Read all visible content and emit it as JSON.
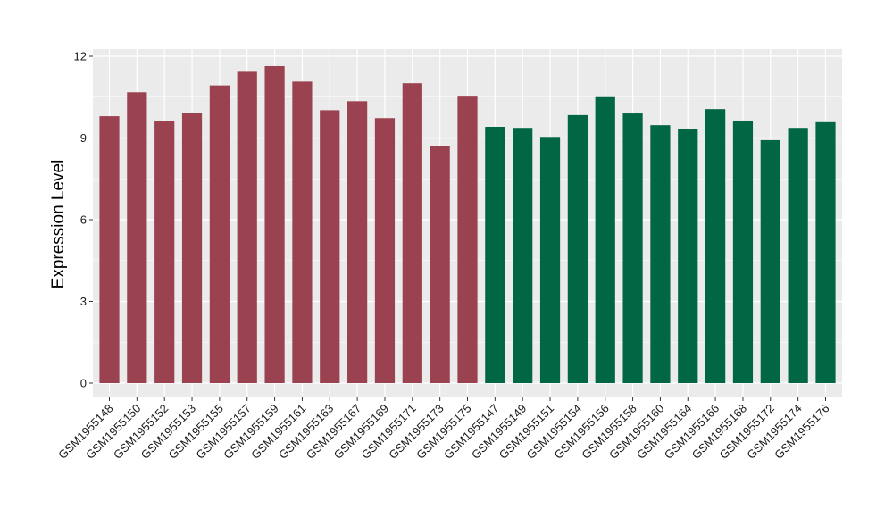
{
  "chart_data": {
    "type": "bar",
    "title": "",
    "xlabel": "",
    "ylabel": "Expression Level",
    "ylim": [
      0,
      12
    ],
    "yticks": [
      0,
      3,
      6,
      9,
      12
    ],
    "grid": true,
    "legend": "none",
    "colors": {
      "group_a": "#9b4250",
      "group_b": "#006644",
      "panel_bg": "#ebebeb",
      "grid": "#ffffff"
    },
    "categories": [
      "GSM1955148",
      "GSM1955150",
      "GSM1955152",
      "GSM1955153",
      "GSM1955155",
      "GSM1955157",
      "GSM1955159",
      "GSM1955161",
      "GSM1955163",
      "GSM1955167",
      "GSM1955169",
      "GSM1955171",
      "GSM1955173",
      "GSM1955175",
      "GSM1955147",
      "GSM1955149",
      "GSM1955151",
      "GSM1955154",
      "GSM1955156",
      "GSM1955158",
      "GSM1955160",
      "GSM1955164",
      "GSM1955166",
      "GSM1955168",
      "GSM1955172",
      "GSM1955174",
      "GSM1955176"
    ],
    "values": [
      9.8,
      10.68,
      9.63,
      9.93,
      10.93,
      11.43,
      11.64,
      11.07,
      10.02,
      10.35,
      9.73,
      11.01,
      8.69,
      10.52,
      9.41,
      9.37,
      9.04,
      9.84,
      10.5,
      9.9,
      9.47,
      9.34,
      10.06,
      9.64,
      8.92,
      9.37,
      9.58
    ],
    "groups": [
      "a",
      "a",
      "a",
      "a",
      "a",
      "a",
      "a",
      "a",
      "a",
      "a",
      "a",
      "a",
      "a",
      "a",
      "b",
      "b",
      "b",
      "b",
      "b",
      "b",
      "b",
      "b",
      "b",
      "b",
      "b",
      "b",
      "b"
    ]
  }
}
